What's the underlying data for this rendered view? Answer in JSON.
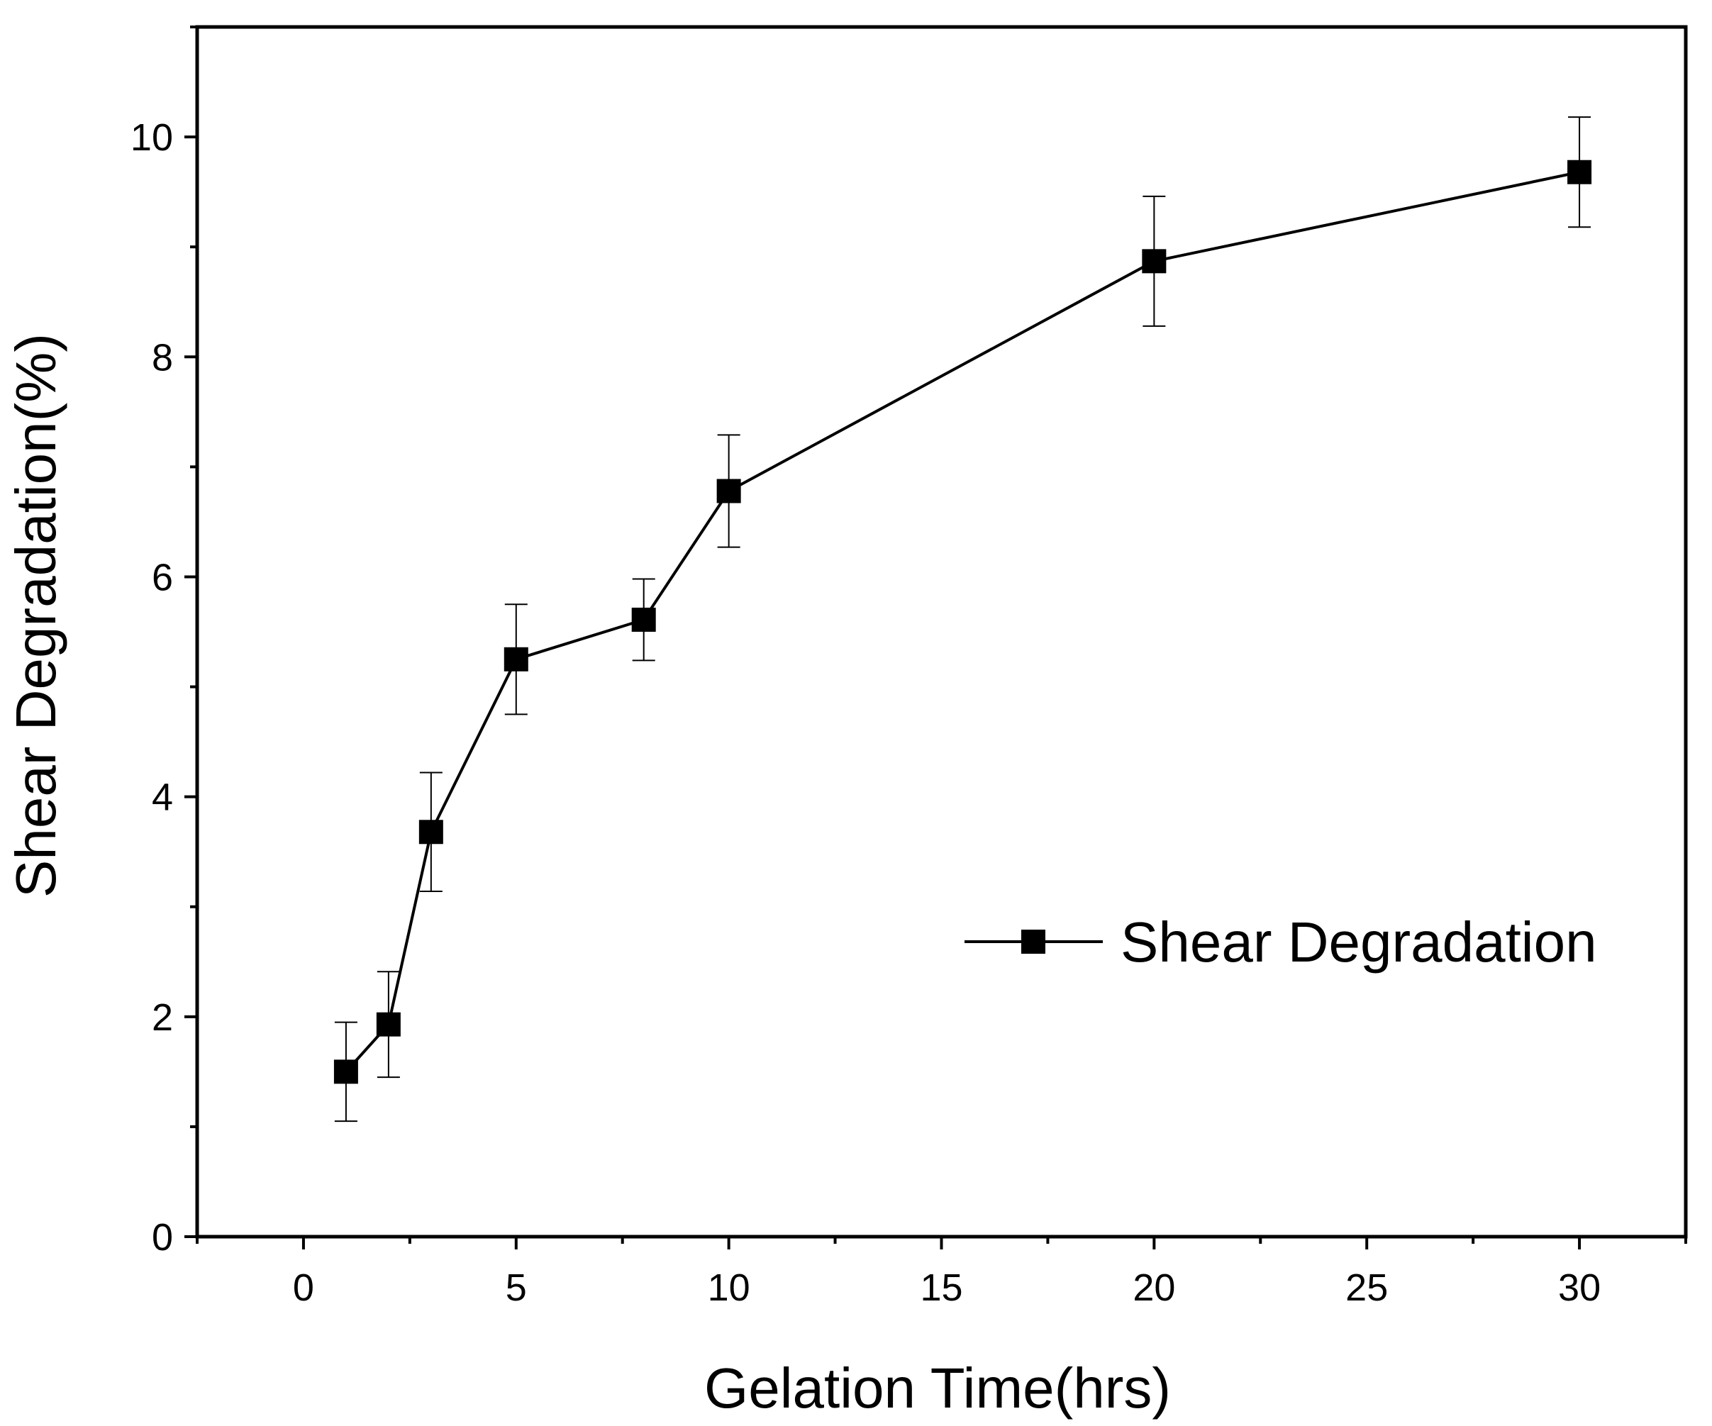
{
  "chart_data": {
    "type": "line",
    "title": "",
    "xlabel": "Gelation Time(hrs)",
    "ylabel": "Shear Degradation(%)",
    "xlim": [
      -2.5,
      32.5
    ],
    "ylim": [
      0,
      11
    ],
    "xticks": [
      0,
      5,
      10,
      15,
      20,
      25,
      30
    ],
    "yticks": [
      0,
      2,
      4,
      6,
      8,
      10
    ],
    "x_minor_step": 2.5,
    "y_minor_step": 1,
    "grid": false,
    "legend_position": "center-right",
    "series": [
      {
        "name": "Shear Degradation",
        "marker": "square",
        "color": "#000000",
        "x": [
          1,
          2,
          3,
          5,
          8,
          10,
          20,
          30
        ],
        "y": [
          1.5,
          1.93,
          3.68,
          5.25,
          5.61,
          6.78,
          8.87,
          9.68
        ],
        "error": [
          0.45,
          0.48,
          0.54,
          0.5,
          0.37,
          0.51,
          0.59,
          0.5
        ]
      }
    ]
  }
}
